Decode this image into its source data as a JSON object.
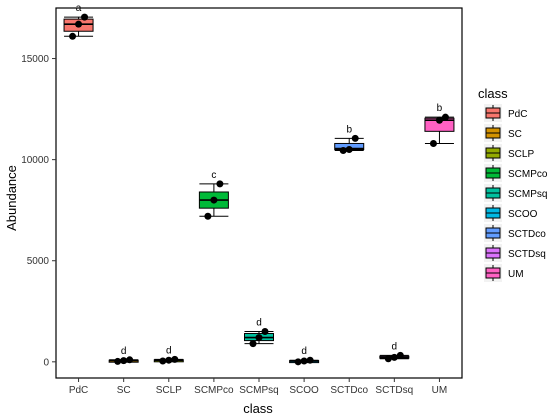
{
  "chart_data": {
    "type": "boxplot",
    "xlabel": "class",
    "ylabel": "Abundance",
    "ylim": [
      -800,
      17500
    ],
    "yticks": [
      0,
      5000,
      10000,
      15000
    ],
    "grid": false,
    "legend_placement": "right",
    "legend_title": "class",
    "categories": [
      "PdC",
      "SC",
      "SCLP",
      "SCMPco",
      "SCMPsq",
      "SCOO",
      "SCTDco",
      "SCTDsq",
      "UM"
    ],
    "colors": [
      "#F8766D",
      "#D39200",
      "#93AA00",
      "#00BA38",
      "#00C19F",
      "#00B9E3",
      "#619CFF",
      "#DB72FB",
      "#FF61C3"
    ],
    "boxes": [
      {
        "min": 16100,
        "q1": 16350,
        "median": 16700,
        "q3": 16950,
        "max": 17050,
        "points": [
          16100,
          16700,
          17050
        ],
        "letter": "a"
      },
      {
        "min": 20,
        "q1": 40,
        "median": 60,
        "q3": 80,
        "max": 100,
        "points": [
          20,
          60,
          100
        ],
        "letter": "d"
      },
      {
        "min": 40,
        "q1": 60,
        "median": 80,
        "q3": 100,
        "max": 120,
        "points": [
          40,
          80,
          120
        ],
        "letter": "d"
      },
      {
        "min": 7200,
        "q1": 7600,
        "median": 8000,
        "q3": 8400,
        "max": 8800,
        "points": [
          7200,
          8000,
          8800
        ],
        "letter": "c"
      },
      {
        "min": 900,
        "q1": 1050,
        "median": 1200,
        "q3": 1400,
        "max": 1500,
        "points": [
          900,
          1200,
          1500
        ],
        "letter": "d"
      },
      {
        "min": 0,
        "q1": 20,
        "median": 40,
        "q3": 60,
        "max": 80,
        "points": [
          0,
          40,
          80
        ],
        "letter": "d"
      },
      {
        "min": 10450,
        "q1": 10500,
        "median": 10550,
        "q3": 10800,
        "max": 11050,
        "points": [
          10450,
          10500,
          11050
        ],
        "letter": "b"
      },
      {
        "min": 150,
        "q1": 180,
        "median": 220,
        "q3": 280,
        "max": 320,
        "points": [
          150,
          220,
          320
        ],
        "letter": "d"
      },
      {
        "min": 10800,
        "q1": 11400,
        "median": 11950,
        "q3": 12050,
        "max": 12100,
        "points": [
          10800,
          11950,
          12100
        ],
        "letter": "b"
      }
    ]
  }
}
